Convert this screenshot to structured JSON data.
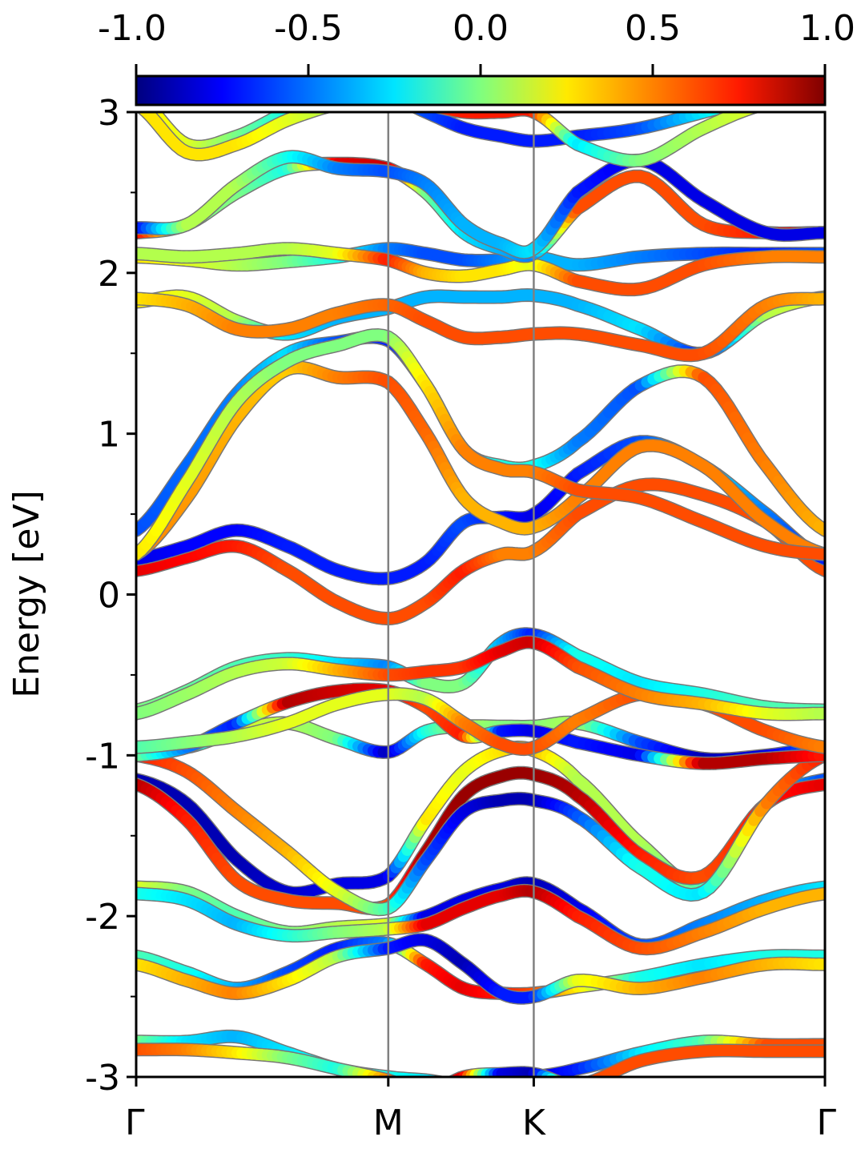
{
  "chart_data": {
    "type": "line",
    "title": "",
    "ylabel": "Energy [eV]",
    "xlabel": "",
    "ylim": [
      -3,
      3
    ],
    "yticks": [
      "-3",
      "-2",
      "-1",
      "0",
      "1",
      "2",
      "3"
    ],
    "ytick_values": [
      -3,
      -2,
      -1,
      0,
      1,
      2,
      3
    ],
    "yminor_step": 0.5,
    "kpath": {
      "labels": [
        "Γ",
        "M",
        "K",
        "Γ"
      ],
      "positions": [
        0,
        1,
        1.577,
        2.732
      ]
    },
    "vertical_lines_at": [
      1,
      1.577
    ],
    "grid": false,
    "colorbar": {
      "colormap": "jet",
      "range": [
        -1.0,
        1.0
      ],
      "ticks": [
        "-1.0",
        "-0.5",
        "0.0",
        "0.5",
        "1.0"
      ],
      "tick_values": [
        -1.0,
        -0.5,
        0.0,
        0.5,
        1.0
      ],
      "placement": "top"
    },
    "x": [
      0,
      0.2,
      0.4,
      0.6,
      0.8,
      1.0,
      1.15,
      1.3,
      1.45,
      1.577,
      1.75,
      2.0,
      2.25,
      2.5,
      2.732
    ],
    "series": [
      {
        "energy": [
          -2.78,
          -2.78,
          -2.75,
          -2.85,
          -2.95,
          -3.0,
          -3.02,
          -3.05,
          -3.02,
          -3.0,
          -2.95,
          -2.85,
          -2.78,
          -2.8,
          -2.8
        ],
        "projection": [
          0.0,
          -0.3,
          -0.4,
          -0.3,
          -0.2,
          -0.2,
          -0.3,
          -0.4,
          -0.6,
          -0.8,
          -0.7,
          -0.3,
          -0.1,
          0.6,
          0.6
        ]
      },
      {
        "energy": [
          -2.83,
          -2.83,
          -2.85,
          -2.88,
          -2.95,
          -3.02,
          -3.1,
          -3.0,
          -2.98,
          -2.98,
          -3.05,
          -2.9,
          -2.84,
          -2.84,
          -2.84
        ],
        "projection": [
          0.6,
          0.5,
          0.3,
          0.0,
          -0.2,
          0.5,
          0.7,
          0.8,
          -0.8,
          -0.9,
          0.6,
          0.6,
          0.6,
          0.6,
          0.6
        ]
      },
      {
        "energy": [
          -2.25,
          -2.35,
          -2.45,
          -2.35,
          -2.2,
          -2.17,
          -2.3,
          -2.45,
          -2.48,
          -2.48,
          -2.44,
          -2.38,
          -2.3,
          -2.25,
          -2.25
        ],
        "projection": [
          -0.1,
          -0.2,
          -0.4,
          -0.6,
          -0.7,
          -0.5,
          0.7,
          0.8,
          0.7,
          0.6,
          0.3,
          -0.2,
          -0.3,
          -0.2,
          -0.2
        ]
      },
      {
        "energy": [
          -2.3,
          -2.4,
          -2.48,
          -2.4,
          -2.25,
          -2.2,
          -2.15,
          -2.3,
          -2.48,
          -2.5,
          -2.4,
          -2.45,
          -2.38,
          -2.3,
          -2.3
        ],
        "projection": [
          0.3,
          0.4,
          0.5,
          0.3,
          0.1,
          -0.7,
          -0.8,
          -0.9,
          -0.7,
          -0.7,
          0.2,
          0.4,
          0.5,
          0.4,
          0.3
        ]
      },
      {
        "energy": [
          -1.82,
          -1.85,
          -2.0,
          -2.1,
          -2.07,
          -2.05,
          -2.0,
          -1.9,
          -1.83,
          -1.8,
          -1.95,
          -2.18,
          -2.05,
          -1.9,
          -1.82
        ],
        "projection": [
          0.2,
          0.0,
          -0.1,
          0.0,
          0.1,
          0.2,
          -0.8,
          -0.8,
          -0.8,
          -0.9,
          -0.8,
          -0.6,
          -0.5,
          -0.4,
          -0.3
        ]
      },
      {
        "energy": [
          -1.86,
          -1.9,
          -2.05,
          -2.12,
          -2.1,
          -2.08,
          -2.05,
          -1.95,
          -1.87,
          -1.85,
          -2.0,
          -2.2,
          -2.1,
          -1.95,
          -1.86
        ],
        "projection": [
          -0.2,
          -0.3,
          -0.4,
          -0.2,
          0.0,
          0.1,
          0.8,
          0.8,
          0.8,
          0.9,
          0.7,
          0.6,
          0.5,
          0.4,
          0.4
        ]
      },
      {
        "energy": [
          -1.15,
          -1.3,
          -1.65,
          -1.85,
          -1.8,
          -1.75,
          -1.4,
          -1.1,
          -0.97,
          -0.97,
          -1.15,
          -1.55,
          -1.8,
          -1.3,
          -1.15
        ],
        "projection": [
          -0.9,
          -0.9,
          -0.9,
          -0.85,
          -0.8,
          -0.8,
          0.3,
          0.2,
          0.3,
          0.4,
          0.1,
          0.1,
          -0.1,
          -0.3,
          -0.6
        ]
      },
      {
        "energy": [
          -1.18,
          -1.4,
          -1.78,
          -1.9,
          -1.92,
          -1.93,
          -1.6,
          -1.25,
          -1.13,
          -1.12,
          -1.25,
          -1.62,
          -1.75,
          -1.3,
          -1.18
        ],
        "projection": [
          0.9,
          0.7,
          0.6,
          0.6,
          0.6,
          0.6,
          0.9,
          0.95,
          0.95,
          0.95,
          0.9,
          0.7,
          0.6,
          0.7,
          0.8
        ]
      },
      {
        "energy": [
          -1.0,
          -1.1,
          -1.35,
          -1.6,
          -1.85,
          -1.95,
          -1.65,
          -1.35,
          -1.28,
          -1.28,
          -1.38,
          -1.7,
          -1.85,
          -1.3,
          -1.0
        ],
        "projection": [
          0.7,
          0.6,
          0.5,
          0.4,
          0.2,
          -0.1,
          -0.6,
          -0.8,
          -0.9,
          -0.9,
          -0.6,
          -0.2,
          -0.3,
          0.5,
          0.7
        ]
      },
      {
        "energy": [
          -0.95,
          -0.95,
          -0.85,
          -0.8,
          -0.9,
          -0.98,
          -0.85,
          -0.82,
          -0.82,
          -0.82,
          -0.8,
          -0.92,
          -1.02,
          -1.0,
          -0.95
        ],
        "projection": [
          -0.3,
          -0.4,
          0.2,
          0.1,
          0.0,
          -0.9,
          -0.2,
          0.1,
          0.0,
          0.0,
          0.1,
          -0.6,
          -0.9,
          -0.8,
          -0.5
        ]
      },
      {
        "energy": [
          -1.0,
          -0.95,
          -0.8,
          -0.67,
          -0.6,
          -0.6,
          -0.7,
          -0.88,
          -0.85,
          -0.85,
          -0.92,
          -1.0,
          -1.05,
          -1.02,
          -1.0
        ],
        "projection": [
          0.0,
          -0.5,
          -0.7,
          0.9,
          0.85,
          0.8,
          0.6,
          0.7,
          -0.7,
          -0.8,
          -0.7,
          -0.8,
          0.9,
          0.9,
          0.7
        ]
      },
      {
        "energy": [
          -0.95,
          -0.92,
          -0.88,
          -0.8,
          -0.68,
          -0.62,
          -0.65,
          -0.8,
          -0.93,
          -0.95,
          -0.78,
          -0.62,
          -0.68,
          -0.85,
          -0.95
        ],
        "projection": [
          -0.1,
          0.0,
          0.1,
          0.2,
          0.2,
          0.2,
          0.1,
          0.5,
          0.6,
          0.6,
          0.5,
          0.6,
          0.6,
          0.6,
          0.5
        ]
      },
      {
        "energy": [
          -0.72,
          -0.6,
          -0.45,
          -0.4,
          -0.43,
          -0.45,
          -0.55,
          -0.55,
          -0.3,
          -0.25,
          -0.38,
          -0.55,
          -0.62,
          -0.7,
          -0.72
        ],
        "projection": [
          0.0,
          -0.05,
          -0.1,
          -0.15,
          -0.3,
          -0.5,
          0.0,
          0.0,
          -0.4,
          -0.7,
          -0.2,
          -0.3,
          -0.2,
          -0.1,
          -0.1
        ]
      },
      {
        "energy": [
          -0.74,
          -0.62,
          -0.48,
          -0.43,
          -0.47,
          -0.5,
          -0.48,
          -0.45,
          -0.35,
          -0.3,
          -0.45,
          -0.62,
          -0.68,
          -0.74,
          -0.74
        ],
        "projection": [
          0.0,
          0.05,
          0.1,
          0.15,
          0.4,
          0.6,
          0.65,
          0.65,
          0.8,
          0.85,
          0.6,
          0.5,
          0.4,
          0.2,
          0.1
        ]
      },
      {
        "energy": [
          0.15,
          0.23,
          0.3,
          0.15,
          -0.05,
          -0.15,
          -0.05,
          0.15,
          0.25,
          0.27,
          0.5,
          0.68,
          0.62,
          0.45,
          0.15
        ],
        "projection": [
          0.8,
          0.75,
          0.7,
          0.6,
          0.6,
          0.6,
          0.6,
          0.7,
          0.5,
          0.5,
          0.6,
          0.6,
          0.6,
          0.6,
          0.6
        ]
      },
      {
        "energy": [
          0.22,
          0.3,
          0.4,
          0.3,
          0.15,
          0.1,
          0.2,
          0.45,
          0.48,
          0.5,
          0.75,
          0.95,
          0.8,
          0.5,
          0.22
        ],
        "projection": [
          -0.8,
          -0.75,
          -0.75,
          -0.7,
          -0.7,
          -0.7,
          -0.7,
          -0.6,
          -0.7,
          -0.8,
          -0.7,
          -0.6,
          -0.3,
          -0.5,
          -0.7
        ]
      },
      {
        "energy": [
          0.25,
          0.6,
          1.1,
          1.4,
          1.35,
          1.32,
          1.0,
          0.6,
          0.45,
          0.42,
          0.6,
          0.92,
          0.8,
          0.45,
          0.25
        ],
        "projection": [
          0.5,
          0.45,
          0.4,
          0.35,
          0.5,
          0.6,
          0.55,
          0.4,
          0.4,
          0.4,
          0.5,
          0.5,
          0.5,
          0.5,
          0.5
        ]
      },
      {
        "energy": [
          0.4,
          0.8,
          1.25,
          1.5,
          1.57,
          1.58,
          1.3,
          0.9,
          0.8,
          0.8,
          0.95,
          1.3,
          1.35,
          0.8,
          0.4
        ],
        "projection": [
          -0.6,
          -0.55,
          -0.5,
          -0.3,
          -0.6,
          -0.7,
          -0.6,
          -0.3,
          -0.2,
          -0.2,
          -0.5,
          -0.6,
          0.6,
          0.5,
          0.4
        ]
      },
      {
        "energy": [
          0.25,
          0.7,
          1.2,
          1.45,
          1.55,
          1.6,
          1.3,
          0.9,
          0.78,
          0.76,
          0.65,
          0.6,
          0.45,
          0.3,
          0.25
        ],
        "projection": [
          0.3,
          0.2,
          0.1,
          0.0,
          0.0,
          0.0,
          0.3,
          0.5,
          0.5,
          0.5,
          0.6,
          0.6,
          0.6,
          0.6,
          0.6
        ]
      },
      {
        "energy": [
          1.82,
          1.85,
          1.7,
          1.62,
          1.72,
          1.78,
          1.85,
          1.85,
          1.85,
          1.86,
          1.8,
          1.65,
          1.5,
          1.75,
          1.85
        ],
        "projection": [
          0.3,
          0.2,
          0.1,
          -0.3,
          -0.4,
          -0.4,
          -0.4,
          -0.4,
          -0.4,
          -0.4,
          -0.4,
          -0.3,
          -0.7,
          0.1,
          0.2
        ]
      },
      {
        "energy": [
          1.84,
          1.8,
          1.65,
          1.65,
          1.75,
          1.8,
          1.7,
          1.6,
          1.6,
          1.62,
          1.62,
          1.55,
          1.5,
          1.8,
          1.84
        ],
        "projection": [
          0.3,
          0.4,
          0.5,
          0.5,
          0.5,
          0.55,
          0.6,
          0.6,
          0.6,
          0.6,
          0.6,
          0.6,
          0.6,
          0.5,
          0.4
        ]
      },
      {
        "energy": [
          2.1,
          2.08,
          2.05,
          2.07,
          2.1,
          2.15,
          2.12,
          2.08,
          2.08,
          2.1,
          2.05,
          2.1,
          2.12,
          2.12,
          2.12
        ],
        "projection": [
          0.3,
          0.2,
          0.1,
          0.0,
          -0.2,
          -0.5,
          -0.6,
          -0.6,
          -0.5,
          -0.4,
          -0.4,
          -0.5,
          -0.6,
          -0.7,
          -0.6
        ]
      },
      {
        "energy": [
          2.12,
          2.1,
          2.12,
          2.15,
          2.12,
          2.08,
          2.0,
          1.98,
          2.02,
          2.05,
          1.95,
          1.9,
          2.05,
          2.1,
          2.1
        ],
        "projection": [
          0.1,
          0.1,
          0.1,
          0.1,
          0.2,
          0.7,
          0.4,
          0.3,
          0.3,
          0.2,
          0.6,
          0.6,
          0.6,
          0.5,
          0.5
        ]
      },
      {
        "energy": [
          2.25,
          2.3,
          2.5,
          2.65,
          2.68,
          2.65,
          2.5,
          2.25,
          2.15,
          2.12,
          2.4,
          2.6,
          2.3,
          2.25,
          2.25
        ],
        "projection": [
          0.8,
          0.0,
          0.0,
          -0.2,
          0.8,
          0.85,
          0.0,
          -0.3,
          -0.4,
          -0.5,
          0.6,
          0.6,
          0.6,
          0.7,
          0.8
        ]
      },
      {
        "energy": [
          2.28,
          2.3,
          2.55,
          2.72,
          2.65,
          2.63,
          2.55,
          2.3,
          2.18,
          2.15,
          2.5,
          2.7,
          2.45,
          2.25,
          2.25
        ],
        "projection": [
          -0.8,
          0.1,
          0.1,
          -0.2,
          -0.5,
          -0.6,
          -0.5,
          -0.4,
          -0.4,
          -0.3,
          -0.7,
          -0.8,
          -0.8,
          -0.8,
          -0.8
        ]
      },
      {
        "energy": [
          3.1,
          2.8,
          2.85,
          3.0,
          3.1,
          3.1,
          3.0,
          2.9,
          2.85,
          2.82,
          2.85,
          2.9,
          3.0,
          3.1,
          3.1
        ],
        "projection": [
          0.3,
          0.2,
          0.0,
          -0.2,
          -0.3,
          -0.5,
          -0.6,
          -0.7,
          -0.7,
          -0.7,
          -0.7,
          -0.6,
          -0.3,
          0.0,
          0.0
        ]
      },
      {
        "energy": [
          3.05,
          2.75,
          2.8,
          2.95,
          3.05,
          3.1,
          3.05,
          3.0,
          3.0,
          3.0,
          2.8,
          2.7,
          2.9,
          3.05,
          3.05
        ],
        "projection": [
          0.3,
          0.3,
          0.3,
          0.2,
          0.1,
          0.0,
          0.6,
          0.7,
          0.7,
          0.7,
          -0.3,
          0.0,
          0.1,
          0.2,
          0.3
        ]
      }
    ]
  }
}
